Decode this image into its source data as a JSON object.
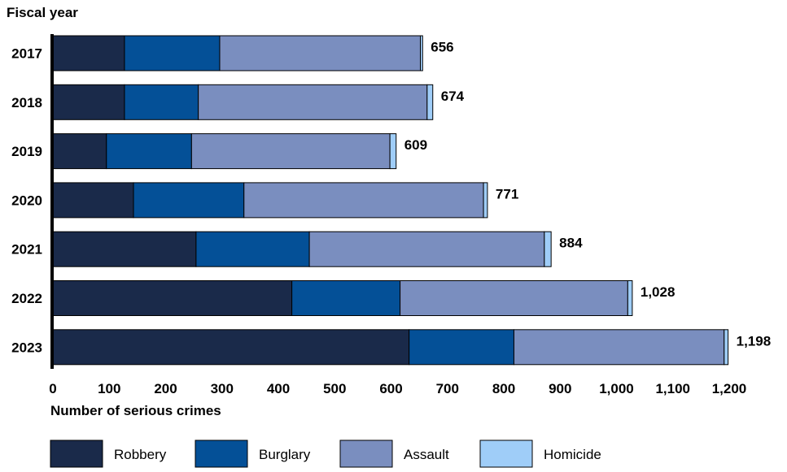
{
  "chart_data": {
    "type": "bar",
    "orientation": "horizontal",
    "stacked": true,
    "y_axis_title": "Fiscal year",
    "xlabel": "Number of serious crimes",
    "categories": [
      "2017",
      "2018",
      "2019",
      "2020",
      "2021",
      "2022",
      "2023"
    ],
    "series": [
      {
        "name": "Robbery",
        "color": "#1a2a4a",
        "values": [
          127,
          127,
          95,
          143,
          254,
          424,
          632
        ]
      },
      {
        "name": "Burglary",
        "color": "#045097",
        "values": [
          169,
          131,
          151,
          196,
          201,
          192,
          186
        ]
      },
      {
        "name": "Assault",
        "color": "#7a8ebf",
        "values": [
          356,
          406,
          352,
          425,
          417,
          404,
          373
        ]
      },
      {
        "name": "Homicide",
        "color": "#9fcdf8",
        "values": [
          4,
          10,
          11,
          7,
          12,
          8,
          7
        ]
      }
    ],
    "totals": [
      "656",
      "674",
      "609",
      "771",
      "884",
      "1,028",
      "1,198"
    ],
    "xlim": [
      0,
      1200
    ],
    "xticks": [
      0,
      100,
      200,
      300,
      400,
      500,
      600,
      700,
      800,
      900,
      1000,
      1100,
      1200
    ],
    "xtick_labels": [
      "0",
      "100",
      "200",
      "300",
      "400",
      "500",
      "600",
      "700",
      "800",
      "900",
      "1,000",
      "1,100",
      "1,200"
    ],
    "grid": false,
    "legend_position": "bottom"
  }
}
